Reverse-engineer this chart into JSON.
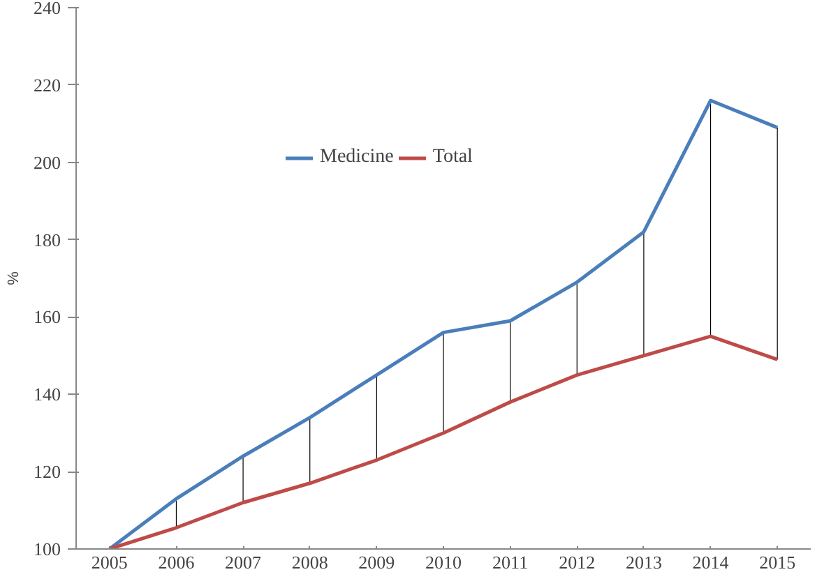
{
  "chart_data": {
    "type": "line",
    "ylabel": "%",
    "categories": [
      "2005",
      "2006",
      "2007",
      "2008",
      "2009",
      "2010",
      "2011",
      "2012",
      "2013",
      "2014",
      "2015"
    ],
    "series": [
      {
        "name": "Medicine",
        "color": "#4a7ebb",
        "values": [
          100,
          113,
          124,
          134,
          145,
          156,
          159,
          169,
          182,
          216,
          209
        ],
        "errors": [
          null,
          [
            105.5,
            113
          ],
          [
            112,
            124
          ],
          [
            117,
            134
          ],
          [
            123,
            145
          ],
          [
            130,
            156
          ],
          [
            138,
            159
          ],
          [
            145,
            169
          ],
          [
            150,
            182
          ],
          [
            155,
            216
          ],
          [
            149,
            209
          ]
        ]
      },
      {
        "name": "Total",
        "color": "#be4b48",
        "values": [
          100,
          105.5,
          112,
          117,
          123,
          130,
          138,
          145,
          150,
          155,
          149
        ]
      }
    ],
    "ylim": [
      100,
      240
    ],
    "yticks": [
      100,
      120,
      140,
      160,
      180,
      200,
      220,
      240
    ],
    "grid": false,
    "legend": "top",
    "marker": "none",
    "line_style": "solid"
  }
}
